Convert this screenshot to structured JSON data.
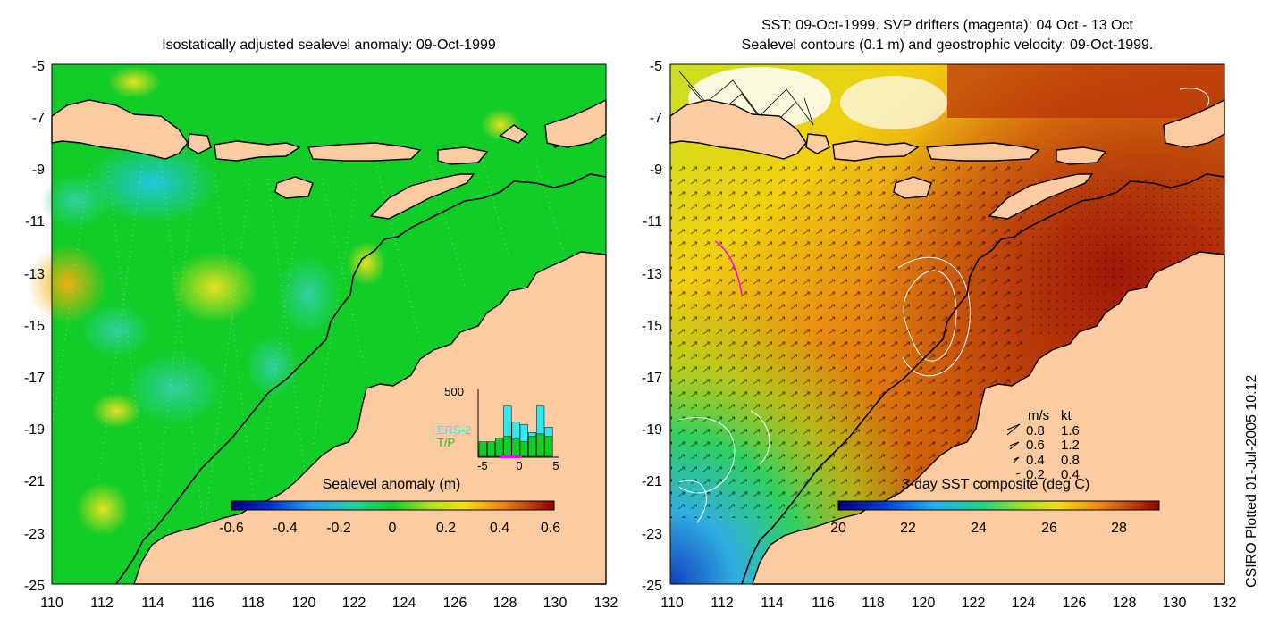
{
  "left_panel": {
    "title": "Isostatically adjusted sealevel anomaly: 09-Oct-1999",
    "y_ticks": [
      "-5",
      "-7",
      "-9",
      "-11",
      "-13",
      "-15",
      "-17",
      "-19",
      "-21",
      "-23",
      "-25"
    ],
    "x_ticks": [
      "110",
      "112",
      "114",
      "116",
      "118",
      "120",
      "122",
      "124",
      "126",
      "128",
      "130",
      "132"
    ],
    "colorbar": {
      "label": "Sealevel anomaly (m)",
      "ticks": [
        "-0.6",
        "-0.4",
        "-0.2",
        "0",
        "0.2",
        "0.4",
        "0.6"
      ]
    },
    "inset": {
      "y_max_label": "500",
      "series_labels": [
        "ERS-2",
        "T/P"
      ],
      "x_ticks": [
        "-5",
        "0",
        "5"
      ],
      "ers2_counts": [
        40,
        60,
        90,
        380,
        260,
        240,
        180,
        380,
        220
      ],
      "tp_counts": [
        110,
        110,
        140,
        150,
        130,
        110,
        150,
        170,
        150
      ]
    }
  },
  "right_panel": {
    "title_line1": "SST: 09-Oct-1999. SVP drifters (magenta): 04 Oct - 13 Oct",
    "title_line2": "Sealevel contours (0.1 m) and geostrophic velocity: 09-Oct-1999.",
    "y_ticks": [
      "-5",
      "-7",
      "-9",
      "-11",
      "-13",
      "-15",
      "-17",
      "-19",
      "-21",
      "-23",
      "-25"
    ],
    "x_ticks": [
      "110",
      "112",
      "114",
      "116",
      "118",
      "120",
      "122",
      "124",
      "126",
      "128",
      "130",
      "132"
    ],
    "colorbar": {
      "label": "3-day SST composite (deg C)",
      "ticks": [
        "20",
        "22",
        "24",
        "26",
        "28"
      ]
    },
    "velocity_legend": {
      "header_ms": "m/s",
      "header_kt": "kt",
      "rows": [
        {
          "ms": "0.8",
          "kt": "1.6"
        },
        {
          "ms": "0.6",
          "kt": "1.2"
        },
        {
          "ms": "0.4",
          "kt": "0.8"
        },
        {
          "ms": "0.2",
          "kt": "0.4"
        }
      ]
    }
  },
  "side_note": "CSIRO Plotted 01-Jul-2005 10:12",
  "colors": {
    "land": "#fccb9f",
    "sla_base": "#12cc28",
    "sst_warm": "#c83a0a",
    "sst_mid": "#e07a10",
    "sst_cool": "#30b0e0",
    "drifter": "#ff00ff"
  }
}
